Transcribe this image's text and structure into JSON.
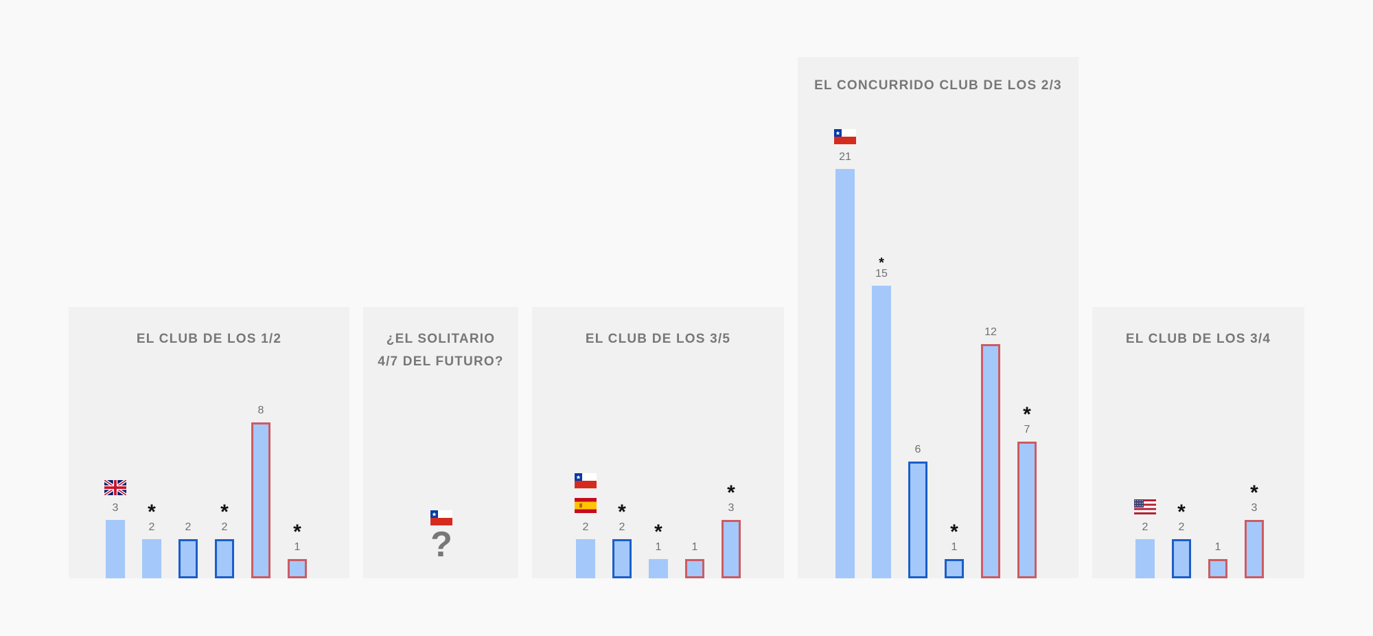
{
  "colors": {
    "background": "#f9f9f9",
    "panel": "#f1f1f1",
    "bar_fill": "#a4c8fa",
    "blue_outline": "#1a5ec9",
    "red_outline": "#cc5b62",
    "title_text": "#777777",
    "value_text": "#6f6f6f",
    "asterisk": "#111111"
  },
  "chart_data": [
    {
      "type": "bar",
      "title": "EL CLUB DE LOS 1/2",
      "xlabel": "",
      "ylabel": "",
      "ylim": [
        0,
        21
      ],
      "grid": false,
      "bars": [
        {
          "value": 3,
          "style": "plain",
          "flag": "uk",
          "asterisk": false
        },
        {
          "value": 2,
          "style": "plain",
          "asterisk": true
        },
        {
          "value": 2,
          "style": "blue",
          "asterisk": false
        },
        {
          "value": 2,
          "style": "blue",
          "asterisk": true
        },
        {
          "value": 8,
          "style": "red",
          "asterisk": false
        },
        {
          "value": 1,
          "style": "red",
          "asterisk": true
        }
      ]
    },
    {
      "type": "bar",
      "title": "¿EL SOLITARIO\n4/7 DEL FUTURO?",
      "xlabel": "",
      "ylabel": "",
      "ylim": [
        0,
        21
      ],
      "grid": false,
      "bars": [],
      "flags": [
        "chile"
      ],
      "unknown_mark": "?"
    },
    {
      "type": "bar",
      "title": "EL CLUB DE LOS 3/5",
      "xlabel": "",
      "ylabel": "",
      "ylim": [
        0,
        21
      ],
      "grid": false,
      "bars": [
        {
          "value": 2,
          "style": "plain",
          "flags": [
            "chile",
            "spain"
          ],
          "asterisk": false
        },
        {
          "value": 2,
          "style": "blue",
          "asterisk": true
        },
        {
          "value": 1,
          "style": "plain",
          "asterisk": true
        },
        {
          "value": 1,
          "style": "red",
          "asterisk": false
        },
        {
          "value": 3,
          "style": "red",
          "asterisk": true
        }
      ]
    },
    {
      "type": "bar",
      "title": "EL CONCURRIDO CLUB DE LOS 2/3",
      "xlabel": "",
      "ylabel": "",
      "ylim": [
        0,
        21
      ],
      "grid": false,
      "bars": [
        {
          "value": 21,
          "style": "plain",
          "flag": "chile",
          "asterisk": false
        },
        {
          "value": 15,
          "style": "plain",
          "asterisk": true
        },
        {
          "value": 6,
          "style": "blue",
          "asterisk": false
        },
        {
          "value": 1,
          "style": "blue",
          "asterisk": true
        },
        {
          "value": 12,
          "style": "red",
          "asterisk": false
        },
        {
          "value": 7,
          "style": "red",
          "asterisk": true
        }
      ]
    },
    {
      "type": "bar",
      "title": "EL CLUB DE LOS 3/4",
      "xlabel": "",
      "ylabel": "",
      "ylim": [
        0,
        21
      ],
      "grid": false,
      "bars": [
        {
          "value": 2,
          "style": "plain",
          "flag": "usa",
          "asterisk": false
        },
        {
          "value": 2,
          "style": "blue",
          "asterisk": true
        },
        {
          "value": 1,
          "style": "red",
          "asterisk": false
        },
        {
          "value": 3,
          "style": "red",
          "asterisk": true
        }
      ]
    }
  ]
}
